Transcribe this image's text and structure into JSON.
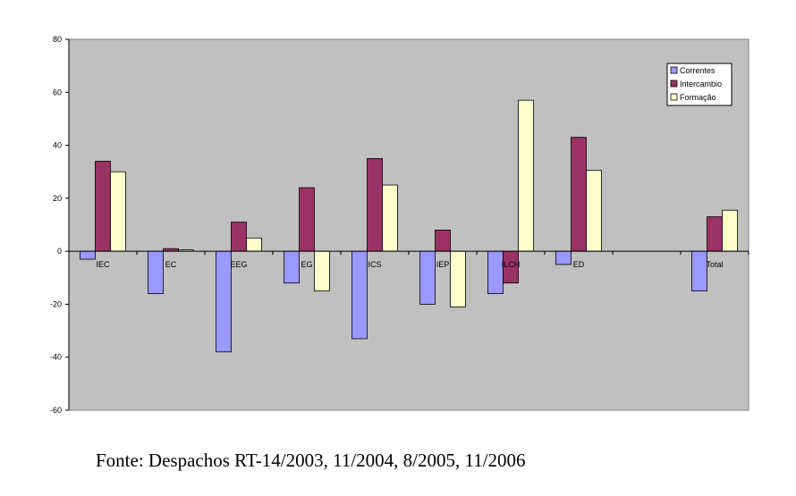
{
  "chart_data": {
    "type": "bar",
    "categories": [
      "IEC",
      "EC",
      "EEG",
      "EG",
      "ICS",
      "IEP",
      "ILCH",
      "ED",
      "",
      "Total"
    ],
    "series": [
      {
        "name": "Correntes",
        "color": "#9999ff",
        "values": [
          -3,
          -16,
          -38,
          -12,
          -33,
          -20,
          -16,
          -5,
          null,
          -15
        ]
      },
      {
        "name": "Intercambio",
        "color": "#993366",
        "values": [
          34,
          1,
          11,
          24,
          35,
          8,
          -12,
          43,
          null,
          13
        ]
      },
      {
        "name": "Formação",
        "color": "#ffffcc",
        "values": [
          30,
          0.5,
          5,
          -15,
          25,
          -21,
          57,
          30.5,
          null,
          15.5
        ]
      }
    ],
    "ylim": [
      -60,
      80
    ],
    "yticks": [
      -60,
      -40,
      -20,
      0,
      20,
      40,
      60,
      80
    ],
    "grid": false,
    "legend_position": "top-right",
    "plot_background": "#c0c0c0",
    "title": "",
    "xlabel": "",
    "ylabel": ""
  },
  "source_note": "Fonte: Despachos RT-14/2003, 11/2004, 8/2005, 11/2006"
}
